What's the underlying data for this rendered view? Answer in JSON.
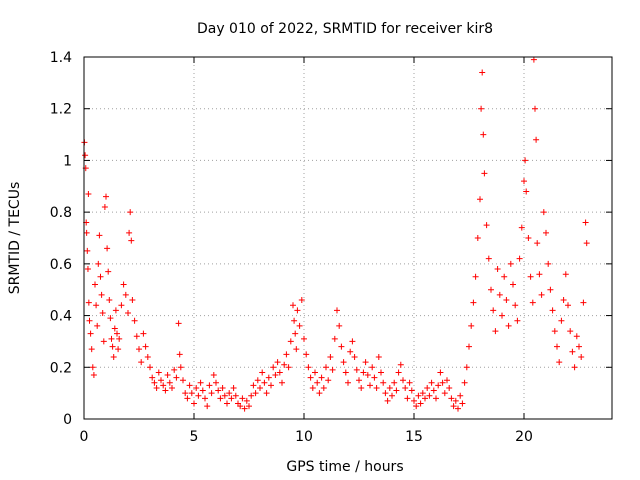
{
  "chart_data": {
    "type": "scatter",
    "title": "Day 010 of 2022, SRMTID for receiver kir8",
    "xlabel": "GPS time / hours",
    "ylabel": "SRMTID / TECUs",
    "xlim": [
      0,
      24
    ],
    "ylim": [
      0,
      1.4
    ],
    "xticks": [
      0,
      5,
      10,
      15,
      20
    ],
    "xtick_labels": [
      "0",
      "5",
      "10",
      "15",
      "20"
    ],
    "yticks": [
      0,
      0.2,
      0.4,
      0.6,
      0.8,
      1.0,
      1.2,
      1.4
    ],
    "ytick_labels": [
      "0",
      "0.2",
      "0.4",
      "0.6",
      "0.8",
      "1",
      "1.2",
      "1.4"
    ],
    "grid": true,
    "marker": "+",
    "color": "#ff0000",
    "series": [
      {
        "name": "SRMTID",
        "points": [
          [
            0.02,
            1.07
          ],
          [
            0.05,
            1.02
          ],
          [
            0.08,
            0.97
          ],
          [
            0.1,
            0.76
          ],
          [
            0.12,
            0.72
          ],
          [
            0.15,
            0.65
          ],
          [
            0.18,
            0.58
          ],
          [
            0.2,
            0.87
          ],
          [
            0.22,
            0.45
          ],
          [
            0.25,
            0.38
          ],
          [
            0.3,
            0.33
          ],
          [
            0.35,
            0.27
          ],
          [
            0.4,
            0.2
          ],
          [
            0.45,
            0.17
          ],
          [
            0.5,
            0.52
          ],
          [
            0.55,
            0.44
          ],
          [
            0.6,
            0.36
          ],
          [
            0.65,
            0.6
          ],
          [
            0.7,
            0.71
          ],
          [
            0.75,
            0.55
          ],
          [
            0.8,
            0.48
          ],
          [
            0.85,
            0.41
          ],
          [
            0.9,
            0.3
          ],
          [
            0.95,
            0.82
          ],
          [
            1.0,
            0.86
          ],
          [
            1.05,
            0.66
          ],
          [
            1.1,
            0.57
          ],
          [
            1.15,
            0.46
          ],
          [
            1.2,
            0.39
          ],
          [
            1.25,
            0.31
          ],
          [
            1.3,
            0.28
          ],
          [
            1.35,
            0.24
          ],
          [
            1.4,
            0.35
          ],
          [
            1.45,
            0.42
          ],
          [
            1.5,
            0.33
          ],
          [
            1.55,
            0.27
          ],
          [
            1.6,
            0.31
          ],
          [
            1.7,
            0.44
          ],
          [
            1.8,
            0.52
          ],
          [
            1.9,
            0.48
          ],
          [
            2.0,
            0.41
          ],
          [
            2.05,
            0.72
          ],
          [
            2.1,
            0.8
          ],
          [
            2.15,
            0.69
          ],
          [
            2.2,
            0.46
          ],
          [
            2.3,
            0.38
          ],
          [
            2.4,
            0.32
          ],
          [
            2.5,
            0.27
          ],
          [
            2.6,
            0.22
          ],
          [
            2.7,
            0.33
          ],
          [
            2.8,
            0.28
          ],
          [
            2.9,
            0.24
          ],
          [
            3.0,
            0.2
          ],
          [
            3.1,
            0.16
          ],
          [
            3.2,
            0.14
          ],
          [
            3.3,
            0.12
          ],
          [
            3.4,
            0.18
          ],
          [
            3.5,
            0.15
          ],
          [
            3.6,
            0.13
          ],
          [
            3.7,
            0.11
          ],
          [
            3.8,
            0.17
          ],
          [
            3.9,
            0.14
          ],
          [
            4.0,
            0.12
          ],
          [
            4.1,
            0.19
          ],
          [
            4.2,
            0.16
          ],
          [
            4.3,
            0.37
          ],
          [
            4.35,
            0.25
          ],
          [
            4.4,
            0.2
          ],
          [
            4.5,
            0.15
          ],
          [
            4.6,
            0.1
          ],
          [
            4.7,
            0.08
          ],
          [
            4.8,
            0.13
          ],
          [
            4.9,
            0.1
          ],
          [
            5.0,
            0.06
          ],
          [
            5.1,
            0.12
          ],
          [
            5.2,
            0.09
          ],
          [
            5.3,
            0.14
          ],
          [
            5.4,
            0.11
          ],
          [
            5.5,
            0.08
          ],
          [
            5.6,
            0.05
          ],
          [
            5.7,
            0.13
          ],
          [
            5.8,
            0.1
          ],
          [
            5.9,
            0.17
          ],
          [
            6.0,
            0.14
          ],
          [
            6.1,
            0.11
          ],
          [
            6.2,
            0.08
          ],
          [
            6.3,
            0.12
          ],
          [
            6.4,
            0.09
          ],
          [
            6.5,
            0.06
          ],
          [
            6.6,
            0.1
          ],
          [
            6.7,
            0.08
          ],
          [
            6.8,
            0.12
          ],
          [
            6.9,
            0.09
          ],
          [
            7.0,
            0.06
          ],
          [
            7.1,
            0.05
          ],
          [
            7.2,
            0.08
          ],
          [
            7.3,
            0.04
          ],
          [
            7.4,
            0.07
          ],
          [
            7.5,
            0.05
          ],
          [
            7.6,
            0.09
          ],
          [
            7.7,
            0.13
          ],
          [
            7.8,
            0.1
          ],
          [
            7.9,
            0.15
          ],
          [
            8.0,
            0.12
          ],
          [
            8.1,
            0.18
          ],
          [
            8.2,
            0.14
          ],
          [
            8.3,
            0.1
          ],
          [
            8.4,
            0.16
          ],
          [
            8.5,
            0.13
          ],
          [
            8.6,
            0.2
          ],
          [
            8.7,
            0.17
          ],
          [
            8.8,
            0.22
          ],
          [
            8.9,
            0.18
          ],
          [
            9.0,
            0.14
          ],
          [
            9.1,
            0.21
          ],
          [
            9.2,
            0.25
          ],
          [
            9.3,
            0.2
          ],
          [
            9.4,
            0.3
          ],
          [
            9.5,
            0.44
          ],
          [
            9.55,
            0.38
          ],
          [
            9.6,
            0.33
          ],
          [
            9.65,
            0.27
          ],
          [
            9.7,
            0.42
          ],
          [
            9.8,
            0.36
          ],
          [
            9.9,
            0.46
          ],
          [
            10.0,
            0.31
          ],
          [
            10.1,
            0.25
          ],
          [
            10.2,
            0.2
          ],
          [
            10.3,
            0.16
          ],
          [
            10.4,
            0.12
          ],
          [
            10.5,
            0.18
          ],
          [
            10.6,
            0.14
          ],
          [
            10.7,
            0.1
          ],
          [
            10.8,
            0.16
          ],
          [
            10.9,
            0.12
          ],
          [
            11.0,
            0.2
          ],
          [
            11.1,
            0.15
          ],
          [
            11.2,
            0.24
          ],
          [
            11.3,
            0.19
          ],
          [
            11.4,
            0.31
          ],
          [
            11.5,
            0.42
          ],
          [
            11.6,
            0.36
          ],
          [
            11.7,
            0.28
          ],
          [
            11.8,
            0.22
          ],
          [
            11.9,
            0.18
          ],
          [
            12.0,
            0.14
          ],
          [
            12.1,
            0.26
          ],
          [
            12.2,
            0.3
          ],
          [
            12.3,
            0.24
          ],
          [
            12.4,
            0.19
          ],
          [
            12.5,
            0.15
          ],
          [
            12.6,
            0.12
          ],
          [
            12.7,
            0.18
          ],
          [
            12.8,
            0.22
          ],
          [
            12.9,
            0.17
          ],
          [
            13.0,
            0.13
          ],
          [
            13.1,
            0.2
          ],
          [
            13.2,
            0.16
          ],
          [
            13.3,
            0.12
          ],
          [
            13.4,
            0.24
          ],
          [
            13.5,
            0.18
          ],
          [
            13.6,
            0.14
          ],
          [
            13.7,
            0.1
          ],
          [
            13.8,
            0.07
          ],
          [
            13.9,
            0.12
          ],
          [
            14.0,
            0.09
          ],
          [
            14.1,
            0.14
          ],
          [
            14.2,
            0.11
          ],
          [
            14.3,
            0.18
          ],
          [
            14.4,
            0.21
          ],
          [
            14.5,
            0.15
          ],
          [
            14.6,
            0.12
          ],
          [
            14.7,
            0.08
          ],
          [
            14.8,
            0.14
          ],
          [
            14.9,
            0.11
          ],
          [
            15.0,
            0.07
          ],
          [
            15.1,
            0.05
          ],
          [
            15.2,
            0.09
          ],
          [
            15.3,
            0.06
          ],
          [
            15.4,
            0.1
          ],
          [
            15.5,
            0.08
          ],
          [
            15.6,
            0.12
          ],
          [
            15.7,
            0.09
          ],
          [
            15.8,
            0.14
          ],
          [
            15.9,
            0.11
          ],
          [
            16.0,
            0.08
          ],
          [
            16.1,
            0.13
          ],
          [
            16.2,
            0.18
          ],
          [
            16.3,
            0.14
          ],
          [
            16.4,
            0.1
          ],
          [
            16.5,
            0.15
          ],
          [
            16.6,
            0.12
          ],
          [
            16.7,
            0.08
          ],
          [
            16.8,
            0.05
          ],
          [
            16.9,
            0.07
          ],
          [
            17.0,
            0.04
          ],
          [
            17.1,
            0.09
          ],
          [
            17.2,
            0.06
          ],
          [
            17.3,
            0.14
          ],
          [
            17.4,
            0.2
          ],
          [
            17.5,
            0.28
          ],
          [
            17.6,
            0.36
          ],
          [
            17.7,
            0.45
          ],
          [
            17.8,
            0.55
          ],
          [
            17.9,
            0.7
          ],
          [
            18.0,
            0.85
          ],
          [
            18.05,
            1.2
          ],
          [
            18.1,
            1.34
          ],
          [
            18.15,
            1.1
          ],
          [
            18.2,
            0.95
          ],
          [
            18.3,
            0.75
          ],
          [
            18.4,
            0.62
          ],
          [
            18.5,
            0.5
          ],
          [
            18.6,
            0.42
          ],
          [
            18.7,
            0.34
          ],
          [
            18.8,
            0.58
          ],
          [
            18.9,
            0.48
          ],
          [
            19.0,
            0.4
          ],
          [
            19.1,
            0.55
          ],
          [
            19.2,
            0.46
          ],
          [
            19.3,
            0.36
          ],
          [
            19.4,
            0.6
          ],
          [
            19.5,
            0.52
          ],
          [
            19.6,
            0.44
          ],
          [
            19.7,
            0.38
          ],
          [
            19.8,
            0.62
          ],
          [
            19.9,
            0.74
          ],
          [
            20.0,
            0.92
          ],
          [
            20.05,
            1.0
          ],
          [
            20.1,
            0.88
          ],
          [
            20.2,
            0.7
          ],
          [
            20.3,
            0.55
          ],
          [
            20.4,
            0.45
          ],
          [
            20.45,
            1.39
          ],
          [
            20.5,
            1.2
          ],
          [
            20.55,
            1.08
          ],
          [
            20.6,
            0.68
          ],
          [
            20.7,
            0.56
          ],
          [
            20.8,
            0.48
          ],
          [
            20.9,
            0.8
          ],
          [
            21.0,
            0.72
          ],
          [
            21.1,
            0.6
          ],
          [
            21.2,
            0.5
          ],
          [
            21.3,
            0.42
          ],
          [
            21.4,
            0.34
          ],
          [
            21.5,
            0.28
          ],
          [
            21.6,
            0.22
          ],
          [
            21.7,
            0.38
          ],
          [
            21.8,
            0.46
          ],
          [
            21.9,
            0.56
          ],
          [
            22.0,
            0.44
          ],
          [
            22.1,
            0.34
          ],
          [
            22.2,
            0.26
          ],
          [
            22.3,
            0.2
          ],
          [
            22.4,
            0.32
          ],
          [
            22.5,
            0.28
          ],
          [
            22.6,
            0.24
          ],
          [
            22.7,
            0.45
          ],
          [
            22.8,
            0.76
          ],
          [
            22.85,
            0.68
          ]
        ]
      }
    ]
  }
}
